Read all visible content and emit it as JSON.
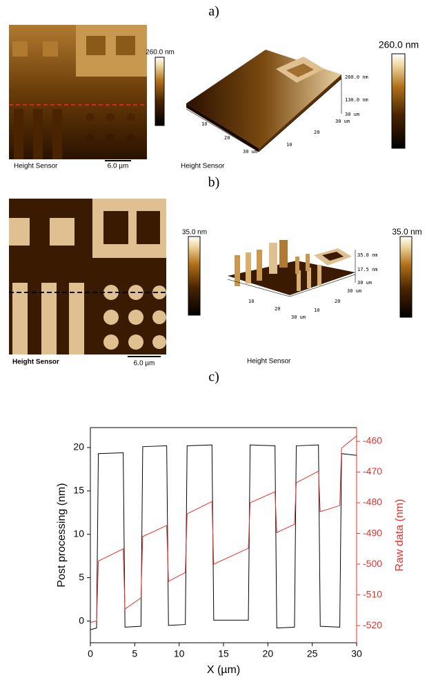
{
  "panel_a": {
    "label": "a)",
    "map": {
      "colorbar_label": "260.0 nm",
      "caption": "Height Sensor",
      "scale_bar": "6.0 µm"
    },
    "view3d": {
      "z_labels": [
        "260.0 nm",
        "130.0 nm",
        "30 um"
      ],
      "left_labels": [
        "10",
        "20",
        "30 um"
      ],
      "right_labels": [
        "10",
        "20",
        "30 um"
      ],
      "caption": "Height Sensor",
      "colorbar_label": "260.0 nm"
    }
  },
  "panel_b": {
    "label": "b)",
    "map": {
      "colorbar_label": "35.0 nm",
      "caption": "Height Sensor",
      "scale_bar": "6.0 µm"
    },
    "view3d": {
      "z_labels": [
        "35.0 nm",
        "17.5 nm",
        "30 um"
      ],
      "left_labels": [
        "10",
        "20",
        "30 um"
      ],
      "right_labels": [
        "10",
        "20",
        "30 um"
      ],
      "caption": "Height Sensor",
      "colorbar_label": "35.0 nm"
    }
  },
  "panel_c": {
    "label": "c)"
  },
  "chart_data": {
    "type": "line",
    "xlabel": "X (µm)",
    "ylabel": "Post processing (nm)",
    "y2label": "Raw data (nm)",
    "x": [
      0,
      0.7,
      0.9,
      3.7,
      3.9,
      5.7,
      5.9,
      8.6,
      8.8,
      10.7,
      10.9,
      13.7,
      13.9,
      17.8,
      18.0,
      20.8,
      21.0,
      23.0,
      23.2,
      25.7,
      25.9,
      28.1,
      28.3,
      30
    ],
    "series": [
      {
        "color": "#000000",
        "values": [
          -1,
          -0.8,
          19.3,
          19.4,
          -0.7,
          -0.6,
          20.1,
          20.2,
          -0.5,
          -0.4,
          20.2,
          20.3,
          0.1,
          0.1,
          20.3,
          20.2,
          -0.8,
          -0.7,
          20.2,
          20.3,
          -0.6,
          -0.7,
          19.3,
          19.1
        ]
      },
      {
        "color": "#e8302a",
        "axis": "y2",
        "values": [
          -519,
          -518.5,
          -499,
          -495,
          -514.6,
          -511,
          -491,
          -487.4,
          -505.6,
          -502.7,
          -483.6,
          -479.6,
          -500,
          -494.8,
          -480,
          -476.4,
          -489.7,
          -487,
          -473.5,
          -469.7,
          -482.9,
          -480.9,
          -462.2,
          -458.2
        ]
      }
    ],
    "xlim": [
      0,
      30
    ],
    "xticks": [
      0,
      5,
      10,
      15,
      20,
      25,
      30
    ],
    "ylim": [
      -2.5,
      22.3
    ],
    "yticks": [
      0,
      5,
      10,
      15,
      20
    ],
    "y2lim": [
      -525.6,
      -455.5
    ],
    "y2ticks": [
      -520,
      -510,
      -500,
      -490,
      -480,
      -470,
      -460
    ],
    "y2color": "#e8302a",
    "grid": false
  }
}
